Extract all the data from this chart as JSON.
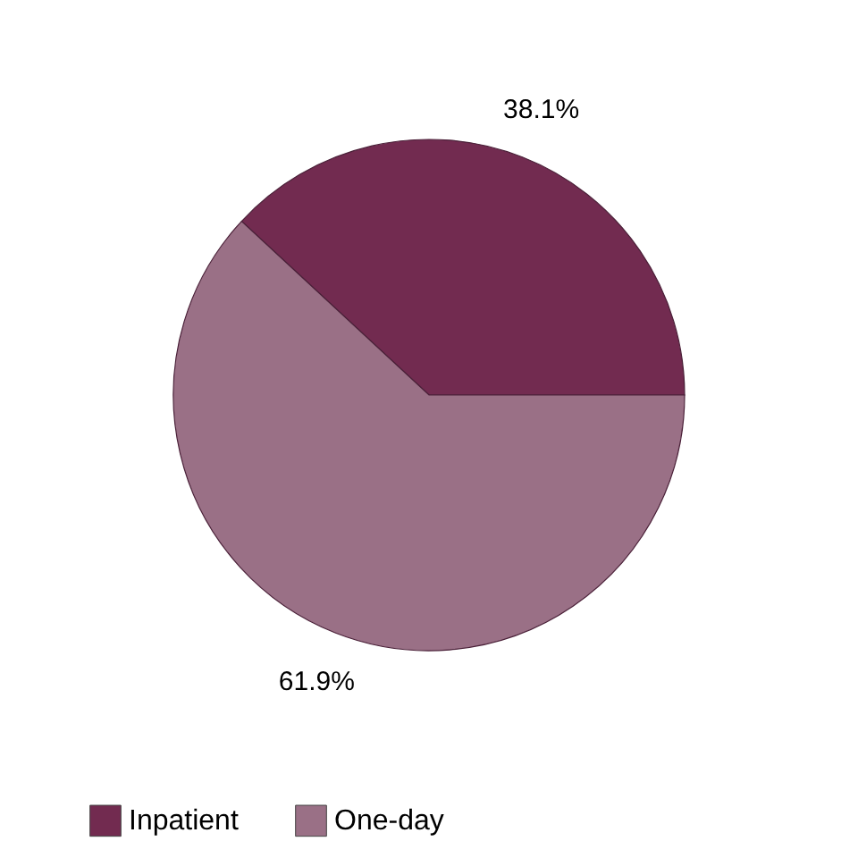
{
  "chart_data": {
    "type": "pie",
    "categories": [
      "Inpatient",
      "One-day"
    ],
    "values": [
      38.1,
      61.9
    ],
    "colors": [
      "#722b50",
      "#9a7086"
    ],
    "value_labels": [
      "38.1%",
      "61.9%"
    ],
    "legend": "bottom"
  }
}
